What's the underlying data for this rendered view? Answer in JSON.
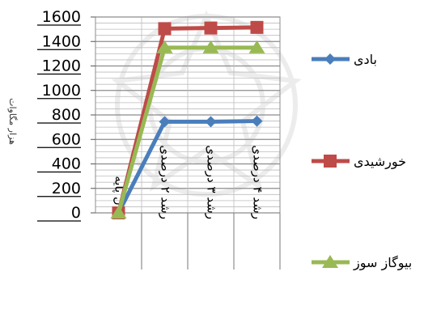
{
  "chart_data": {
    "type": "line",
    "title": "",
    "ylabel": "هزار مگاوات",
    "xlabel": "",
    "categories": [
      "سال پایه",
      "رشد ۲ درصدی",
      "رشد ۳ درصدی",
      "رشد ۴ درصدی"
    ],
    "ylim": [
      0,
      1600
    ],
    "yticks": [
      "0",
      "200",
      "400",
      "600",
      "800",
      "1000",
      "1200",
      "1400",
      "1600"
    ],
    "grid": true,
    "legend": "right",
    "series": [
      {
        "name": "بادی",
        "values": [
          0,
          745,
          745,
          750
        ],
        "color": "#4a7ebb",
        "marker": "diamond"
      },
      {
        "name": "خورشیدی",
        "values": [
          0,
          1505,
          1510,
          1515
        ],
        "color": "#be4b48",
        "marker": "square"
      },
      {
        "name": "بیوگاز سوز",
        "values": [
          0,
          1350,
          1350,
          1350
        ],
        "color": "#98b954",
        "marker": "triangle"
      }
    ]
  }
}
